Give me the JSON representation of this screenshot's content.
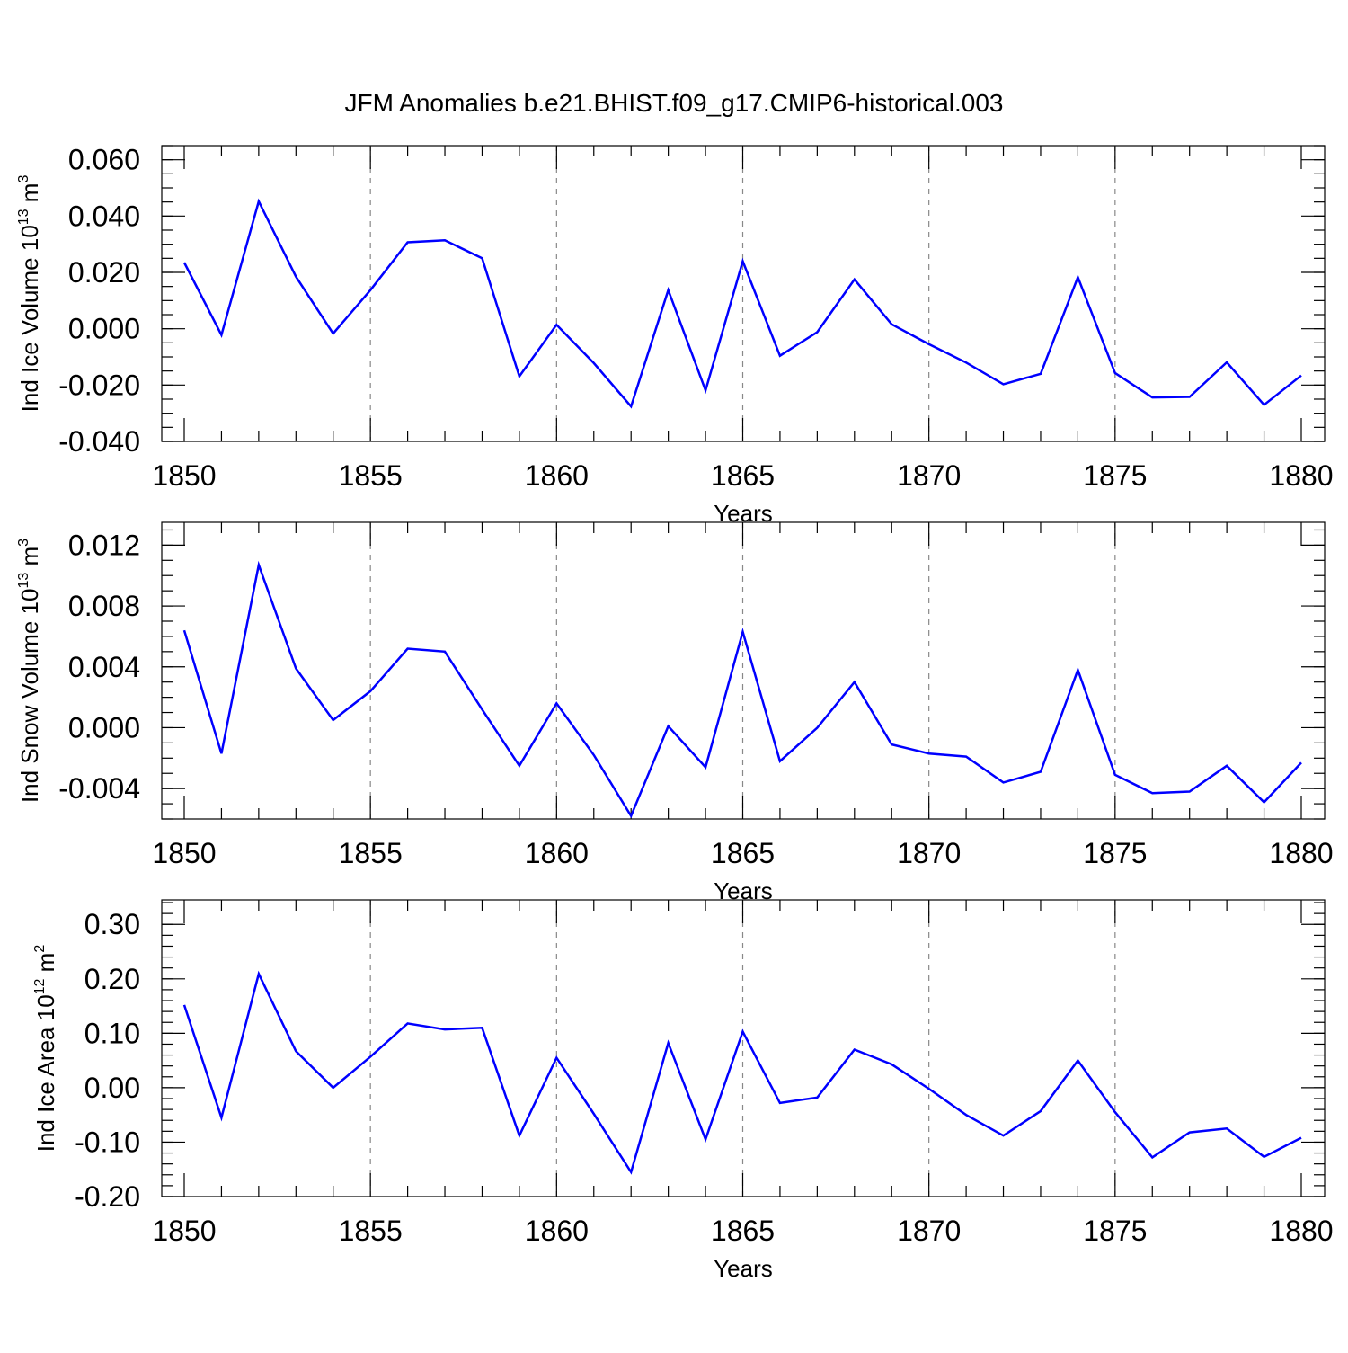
{
  "title": "JFM Anomalies b.e21.BHIST.f09_g17.CMIP6-historical.003",
  "colors": {
    "line": "#0000ff",
    "grid": "#888888",
    "axis": "#000000"
  },
  "chart_data": [
    {
      "type": "line",
      "ylabel_prefix": "Ind Ice Volume 10",
      "ylabel_exp": "13",
      "ylabel_unit": " m",
      "ylabel_unit_exp": "3",
      "xlabel": "Years",
      "xlim": [
        1850,
        1880
      ],
      "ylim": [
        -0.04,
        0.065
      ],
      "x_ticks": [
        1850,
        1855,
        1860,
        1865,
        1870,
        1875,
        1880
      ],
      "x_tick_labels": [
        "1850",
        "1855",
        "1860",
        "1865",
        "1870",
        "1875",
        "1880"
      ],
      "y_ticks": [
        -0.04,
        -0.02,
        0.0,
        0.02,
        0.04,
        0.06
      ],
      "y_tick_labels": [
        "-0.040",
        "-0.020",
        "0.000",
        "0.020",
        "0.040",
        "0.060"
      ],
      "y_minor_step": 0.005,
      "grid": "vertical-dashed",
      "series": [
        {
          "name": "Ind Ice Volume",
          "x": [
            1850,
            1851,
            1852,
            1853,
            1854,
            1855,
            1856,
            1857,
            1858,
            1859,
            1860,
            1861,
            1862,
            1863,
            1864,
            1865,
            1866,
            1867,
            1868,
            1869,
            1870,
            1871,
            1872,
            1873,
            1874,
            1875,
            1876,
            1877,
            1878,
            1879,
            1880
          ],
          "values": [
            0.0235,
            -0.0022,
            0.0452,
            0.0185,
            -0.0017,
            0.0137,
            0.0307,
            0.0314,
            0.025,
            -0.0169,
            0.0014,
            -0.0122,
            -0.0276,
            0.0137,
            -0.0219,
            0.024,
            -0.0096,
            -0.0012,
            0.0175,
            0.0016,
            -0.0055,
            -0.012,
            -0.0197,
            -0.016,
            0.0183,
            -0.0157,
            -0.0244,
            -0.0242,
            -0.0119,
            -0.027,
            -0.0166
          ]
        }
      ]
    },
    {
      "type": "line",
      "ylabel_prefix": "Ind Snow Volume 10",
      "ylabel_exp": "13",
      "ylabel_unit": " m",
      "ylabel_unit_exp": "3",
      "xlabel": "Years",
      "xlim": [
        1850,
        1880
      ],
      "ylim": [
        -0.006,
        0.0135
      ],
      "x_ticks": [
        1850,
        1855,
        1860,
        1865,
        1870,
        1875,
        1880
      ],
      "x_tick_labels": [
        "1850",
        "1855",
        "1860",
        "1865",
        "1870",
        "1875",
        "1880"
      ],
      "y_ticks": [
        -0.004,
        0.0,
        0.004,
        0.008,
        0.012
      ],
      "y_tick_labels": [
        "-0.004",
        "0.000",
        "0.004",
        "0.008",
        "0.012"
      ],
      "y_minor_step": 0.001,
      "grid": "vertical-dashed",
      "series": [
        {
          "name": "Ind Snow Volume",
          "x": [
            1850,
            1851,
            1852,
            1853,
            1854,
            1855,
            1856,
            1857,
            1858,
            1859,
            1860,
            1861,
            1862,
            1863,
            1864,
            1865,
            1866,
            1867,
            1868,
            1869,
            1870,
            1871,
            1872,
            1873,
            1874,
            1875,
            1876,
            1877,
            1878,
            1879,
            1880
          ],
          "values": [
            0.0064,
            -0.0017,
            0.0107,
            0.0039,
            0.0005,
            0.0024,
            0.0052,
            0.005,
            0.0012,
            -0.0025,
            0.0016,
            -0.0018,
            -0.0058,
            0.0001,
            -0.0026,
            0.0063,
            -0.0022,
            0.0,
            0.003,
            -0.0011,
            -0.0017,
            -0.0019,
            -0.0036,
            -0.0029,
            0.0038,
            -0.0031,
            -0.0043,
            -0.0042,
            -0.0025,
            -0.0049,
            -0.0023
          ]
        }
      ]
    },
    {
      "type": "line",
      "ylabel_prefix": "Ind Ice Area 10",
      "ylabel_exp": "12",
      "ylabel_unit": " m",
      "ylabel_unit_exp": "2",
      "xlabel": "Years",
      "xlim": [
        1850,
        1880
      ],
      "ylim": [
        -0.2,
        0.345
      ],
      "x_ticks": [
        1850,
        1855,
        1860,
        1865,
        1870,
        1875,
        1880
      ],
      "x_tick_labels": [
        "1850",
        "1855",
        "1860",
        "1865",
        "1870",
        "1875",
        "1880"
      ],
      "y_ticks": [
        -0.2,
        -0.1,
        0.0,
        0.1,
        0.2,
        0.3
      ],
      "y_tick_labels": [
        "-0.20",
        "-0.10",
        "0.00",
        "0.10",
        "0.20",
        "0.30"
      ],
      "y_minor_step": 0.02,
      "grid": "vertical-dashed",
      "series": [
        {
          "name": "Ind Ice Area",
          "x": [
            1850,
            1851,
            1852,
            1853,
            1854,
            1855,
            1856,
            1857,
            1858,
            1859,
            1860,
            1861,
            1862,
            1863,
            1864,
            1865,
            1866,
            1867,
            1868,
            1869,
            1870,
            1871,
            1872,
            1873,
            1874,
            1875,
            1876,
            1877,
            1878,
            1879,
            1880
          ],
          "values": [
            0.152,
            -0.055,
            0.209,
            0.067,
            0.0,
            0.057,
            0.118,
            0.107,
            0.11,
            -0.088,
            0.055,
            -0.048,
            -0.155,
            0.082,
            -0.095,
            0.103,
            -0.028,
            -0.018,
            0.07,
            0.043,
            -0.002,
            -0.05,
            -0.088,
            -0.043,
            0.05,
            -0.045,
            -0.128,
            -0.082,
            -0.075,
            -0.127,
            -0.092
          ]
        }
      ]
    }
  ]
}
